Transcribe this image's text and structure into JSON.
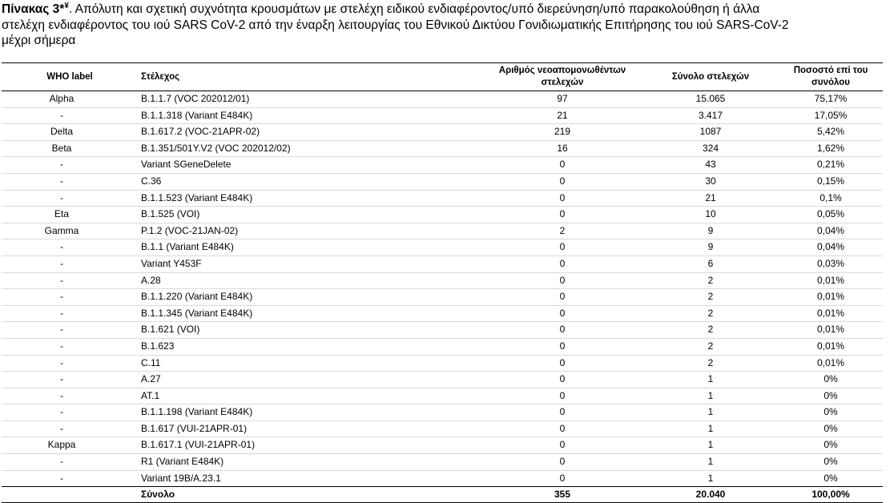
{
  "caption": {
    "label": "Πίνακας 3*",
    "mark": "¥",
    "line1_text": ". Απόλυτη και σχετική συχνότητα κρουσμάτων με στελέχη ειδικού ενδιαφέροντος/υπό διερεύνηση/υπό παρακολούθηση ή άλλα",
    "line2": "στελέχη ενδιαφέροντος του ιού SARS CoV-2 από την έναρξη λειτουργίας του Εθνικού Δικτύου Γονιδιωματικής Επιτήρησης του ιού SARS-CoV-2",
    "line3": "μέχρι σήμερα"
  },
  "table": {
    "headers": {
      "who_label": "WHO label",
      "strain": "Στέλεχος",
      "new_isolated": "Αριθμός νεοαπομονωθέντων στελεχών",
      "total_strains": "Σύνολο στελεχών",
      "percent": "Ποσοστό επί του συνόλου"
    },
    "rows": [
      {
        "who": "Alpha",
        "strain": "B.1.1.7 (VOC 202012/01)",
        "new": "97",
        "total": "15.065",
        "pct": "75,17%"
      },
      {
        "who": "-",
        "strain": "B.1.1.318 (Variant E484K)",
        "new": "21",
        "total": "3.417",
        "pct": "17,05%"
      },
      {
        "who": "Delta",
        "strain": "B.1.617.2 (VOC-21APR-02)",
        "new": "219",
        "total": "1087",
        "pct": "5,42%"
      },
      {
        "who": "Beta",
        "strain": "B.1.351/501Y.V2 (VOC 202012/02)",
        "new": "16",
        "total": "324",
        "pct": "1,62%"
      },
      {
        "who": "-",
        "strain": "Variant SGeneDelete",
        "new": "0",
        "total": "43",
        "pct": "0,21%"
      },
      {
        "who": "-",
        "strain": "C.36",
        "new": "0",
        "total": "30",
        "pct": "0,15%"
      },
      {
        "who": "-",
        "strain": "B.1.1.523 (Variant E484K)",
        "new": "0",
        "total": "21",
        "pct": "0,1%"
      },
      {
        "who": "Eta",
        "strain": "B.1.525 (VOI)",
        "new": "0",
        "total": "10",
        "pct": "0,05%"
      },
      {
        "who": "Gamma",
        "strain": "P.1.2 (VOC-21JAN-02)",
        "new": "2",
        "total": "9",
        "pct": "0,04%"
      },
      {
        "who": "-",
        "strain": "B.1.1 (Variant E484K)",
        "new": "0",
        "total": "9",
        "pct": "0,04%"
      },
      {
        "who": "-",
        "strain": "Variant Y453F",
        "new": "0",
        "total": "6",
        "pct": "0,03%"
      },
      {
        "who": "-",
        "strain": "A.28",
        "new": "0",
        "total": "2",
        "pct": "0,01%"
      },
      {
        "who": "-",
        "strain": "B.1.1.220 (Variant E484K)",
        "new": "0",
        "total": "2",
        "pct": "0,01%"
      },
      {
        "who": "-",
        "strain": "B.1.1.345 (Variant E484K)",
        "new": "0",
        "total": "2",
        "pct": "0,01%"
      },
      {
        "who": "-",
        "strain": "B.1.621 (VOI)",
        "new": "0",
        "total": "2",
        "pct": "0,01%"
      },
      {
        "who": "-",
        "strain": "B.1.623",
        "new": "0",
        "total": "2",
        "pct": "0,01%"
      },
      {
        "who": "-",
        "strain": "C.11",
        "new": "0",
        "total": "2",
        "pct": "0,01%"
      },
      {
        "who": "-",
        "strain": "A.27",
        "new": "0",
        "total": "1",
        "pct": "0%"
      },
      {
        "who": "-",
        "strain": "AT.1",
        "new": "0",
        "total": "1",
        "pct": "0%"
      },
      {
        "who": "-",
        "strain": "B.1.1.198 (Variant E484K)",
        "new": "0",
        "total": "1",
        "pct": "0%"
      },
      {
        "who": "-",
        "strain": "B.1.617 (VUI-21APR-01)",
        "new": "0",
        "total": "1",
        "pct": "0%"
      },
      {
        "who": "Kappa",
        "strain": "B.1.617.1 (VUI-21APR-01)",
        "new": "0",
        "total": "1",
        "pct": "0%"
      },
      {
        "who": "-",
        "strain": "R1 (Variant E484K)",
        "new": "0",
        "total": "1",
        "pct": "0%"
      },
      {
        "who": "-",
        "strain": "Variant 19B/A.23.1",
        "new": "0",
        "total": "1",
        "pct": "0%"
      }
    ],
    "total_row": {
      "label": "Σύνολο",
      "new": "355",
      "total": "20.040",
      "pct": "100,00%"
    }
  }
}
